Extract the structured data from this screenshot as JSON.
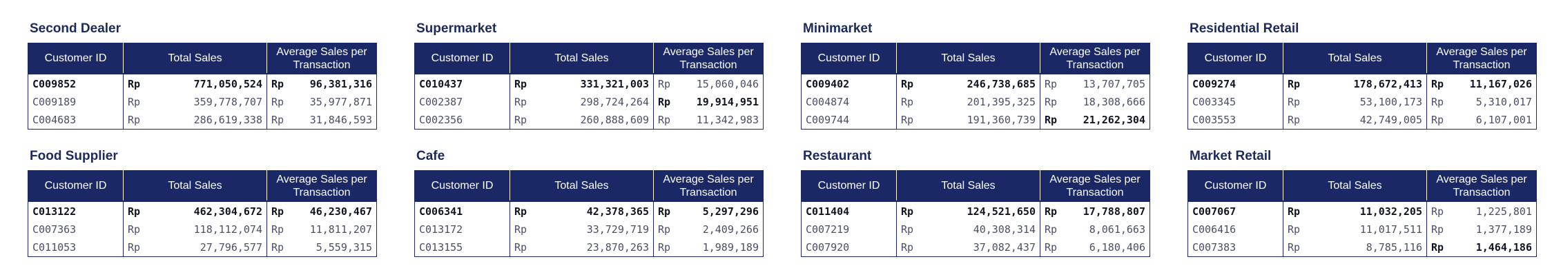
{
  "headers": {
    "customer_id": "Customer ID",
    "total_sales": "Total Sales",
    "average_sales": "Average Sales per Transaction"
  },
  "currency": "Rp",
  "panels": [
    {
      "title": "Second Dealer",
      "rows": [
        {
          "id": "C009852",
          "total": "771,050,524",
          "avg": "96,381,316",
          "id_bold": true,
          "total_bold": true,
          "avg_bold": true
        },
        {
          "id": "C009189",
          "total": "359,778,707",
          "avg": "35,977,871",
          "id_bold": false,
          "total_bold": false,
          "avg_bold": false
        },
        {
          "id": "C004683",
          "total": "286,619,338",
          "avg": "31,846,593",
          "id_bold": false,
          "total_bold": false,
          "avg_bold": false
        }
      ]
    },
    {
      "title": "Supermarket",
      "rows": [
        {
          "id": "C010437",
          "total": "331,321,003",
          "avg": "15,060,046",
          "id_bold": true,
          "total_bold": true,
          "avg_bold": false
        },
        {
          "id": "C002387",
          "total": "298,724,264",
          "avg": "19,914,951",
          "id_bold": false,
          "total_bold": false,
          "avg_bold": true
        },
        {
          "id": "C002356",
          "total": "260,888,609",
          "avg": "11,342,983",
          "id_bold": false,
          "total_bold": false,
          "avg_bold": false
        }
      ]
    },
    {
      "title": "Minimarket",
      "rows": [
        {
          "id": "C009402",
          "total": "246,738,685",
          "avg": "13,707,705",
          "id_bold": true,
          "total_bold": true,
          "avg_bold": false
        },
        {
          "id": "C004874",
          "total": "201,395,325",
          "avg": "18,308,666",
          "id_bold": false,
          "total_bold": false,
          "avg_bold": false
        },
        {
          "id": "C009744",
          "total": "191,360,739",
          "avg": "21,262,304",
          "id_bold": false,
          "total_bold": false,
          "avg_bold": true
        }
      ]
    },
    {
      "title": "Residential Retail",
      "rows": [
        {
          "id": "C009274",
          "total": "178,672,413",
          "avg": "11,167,026",
          "id_bold": true,
          "total_bold": true,
          "avg_bold": true
        },
        {
          "id": "C003345",
          "total": "53,100,173",
          "avg": "5,310,017",
          "id_bold": false,
          "total_bold": false,
          "avg_bold": false
        },
        {
          "id": "C003553",
          "total": "42,749,005",
          "avg": "6,107,001",
          "id_bold": false,
          "total_bold": false,
          "avg_bold": false
        }
      ]
    },
    {
      "title": "Food Supplier",
      "rows": [
        {
          "id": "C013122",
          "total": "462,304,672",
          "avg": "46,230,467",
          "id_bold": true,
          "total_bold": true,
          "avg_bold": true
        },
        {
          "id": "C007363",
          "total": "118,112,074",
          "avg": "11,811,207",
          "id_bold": false,
          "total_bold": false,
          "avg_bold": false
        },
        {
          "id": "C011053",
          "total": "27,796,577",
          "avg": "5,559,315",
          "id_bold": false,
          "total_bold": false,
          "avg_bold": false
        }
      ]
    },
    {
      "title": "Cafe",
      "rows": [
        {
          "id": "C006341",
          "total": "42,378,365",
          "avg": "5,297,296",
          "id_bold": true,
          "total_bold": true,
          "avg_bold": true
        },
        {
          "id": "C013172",
          "total": "33,729,719",
          "avg": "2,409,266",
          "id_bold": false,
          "total_bold": false,
          "avg_bold": false
        },
        {
          "id": "C013155",
          "total": "23,870,263",
          "avg": "1,989,189",
          "id_bold": false,
          "total_bold": false,
          "avg_bold": false
        }
      ]
    },
    {
      "title": "Restaurant",
      "rows": [
        {
          "id": "C011404",
          "total": "124,521,650",
          "avg": "17,788,807",
          "id_bold": true,
          "total_bold": true,
          "avg_bold": true
        },
        {
          "id": "C007219",
          "total": "40,308,314",
          "avg": "8,061,663",
          "id_bold": false,
          "total_bold": false,
          "avg_bold": false
        },
        {
          "id": "C007920",
          "total": "37,082,437",
          "avg": "6,180,406",
          "id_bold": false,
          "total_bold": false,
          "avg_bold": false
        }
      ]
    },
    {
      "title": "Market Retail",
      "rows": [
        {
          "id": "C007067",
          "total": "11,032,205",
          "avg": "1,225,801",
          "id_bold": true,
          "total_bold": true,
          "avg_bold": false
        },
        {
          "id": "C006416",
          "total": "11,017,511",
          "avg": "1,377,189",
          "id_bold": false,
          "total_bold": false,
          "avg_bold": false
        },
        {
          "id": "C007383",
          "total": "8,785,116",
          "avg": "1,464,186",
          "id_bold": false,
          "total_bold": false,
          "avg_bold": true
        }
      ]
    }
  ]
}
